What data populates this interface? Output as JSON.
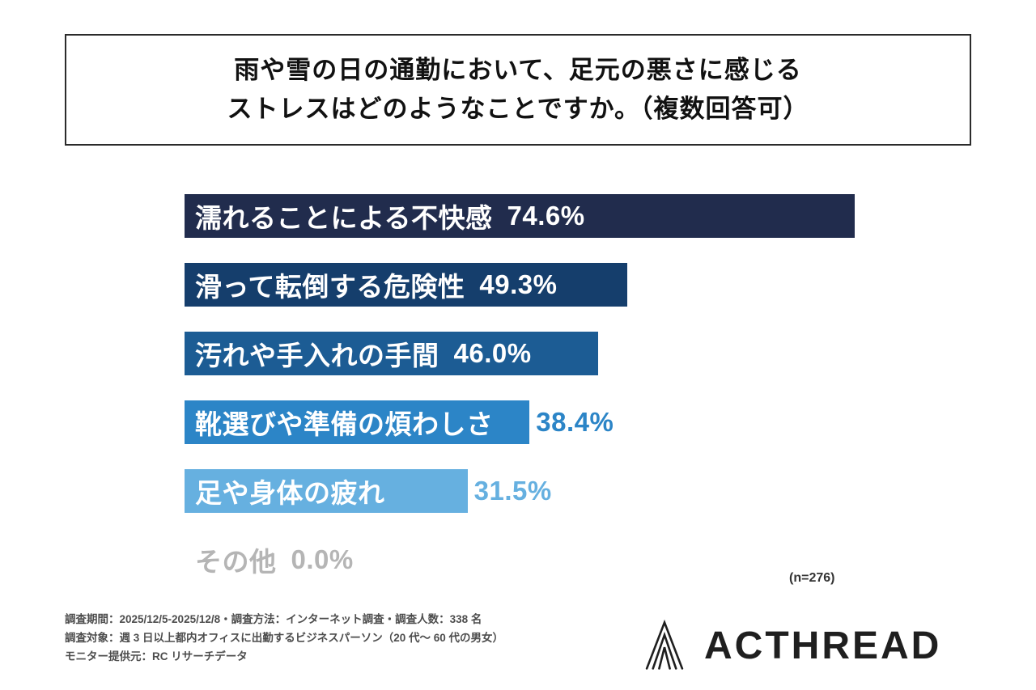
{
  "title": {
    "line1": "雨や雪の日の通勤において、足元の悪さに感じる",
    "line2": "ストレスはどのようなことですか。（複数回答可）"
  },
  "chart_data": {
    "type": "bar",
    "orientation": "horizontal",
    "title": "雨や雪の日の通勤において、足元の悪さに感じるストレスはどのようなことですか。（複数回答可）",
    "categories": [
      "濡れることによる不快感",
      "滑って転倒する危険性",
      "汚れや手入れの手間",
      "靴選びや準備の煩わしさ",
      "足や身体の疲れ",
      "その他"
    ],
    "values": [
      74.6,
      49.3,
      46.0,
      38.4,
      31.5,
      0.0
    ],
    "value_labels": [
      "74.6%",
      "49.3%",
      "46.0%",
      "38.4%",
      "31.5%",
      "0.0%"
    ],
    "xlim": [
      0,
      80
    ],
    "grid": false,
    "legend": false,
    "sample_label": "(n=276)",
    "bars": [
      {
        "label": "濡れることによる不快感",
        "value": 74.6,
        "value_label": "74.6%",
        "color": "#212c4d",
        "label_color": "#ffffff",
        "value_color": "#ffffff",
        "value_placement": "inside"
      },
      {
        "label": "滑って転倒する危険性",
        "value": 49.3,
        "value_label": "49.3%",
        "color": "#153e6c",
        "label_color": "#ffffff",
        "value_color": "#ffffff",
        "value_placement": "inside"
      },
      {
        "label": "汚れや手入れの手間",
        "value": 46.0,
        "value_label": "46.0%",
        "color": "#1c5c94",
        "label_color": "#ffffff",
        "value_color": "#ffffff",
        "value_placement": "inside"
      },
      {
        "label": "靴選びや準備の煩わしさ",
        "value": 38.4,
        "value_label": "38.4%",
        "color": "#2c85c7",
        "label_color": "#ffffff",
        "value_color": "#2c85c7",
        "value_placement": "outside"
      },
      {
        "label": "足や身体の疲れ",
        "value": 31.5,
        "value_label": "31.5%",
        "color": "#66b0e0",
        "label_color": "#ffffff",
        "value_color": "#66b0e0",
        "value_placement": "outside"
      },
      {
        "label": "その他",
        "value": 0.0,
        "value_label": "0.0%",
        "color": "transparent",
        "label_color": "#b5b5b5",
        "value_color": "#b5b5b5",
        "value_placement": "inside"
      }
    ]
  },
  "footer": {
    "line1": "調査期間：2025/12/5-2025/12/8・調査方法：インターネット調査・調査人数：338 名",
    "line2": "調査対象：週 3 日以上都内オフィスに出勤するビジネスパーソン（20 代〜 60 代の男女）",
    "line3": "モニター提供元：RC リサーチデータ"
  },
  "logo": {
    "text": "ACTHREAD",
    "icon": "layered-pyramid-icon"
  }
}
